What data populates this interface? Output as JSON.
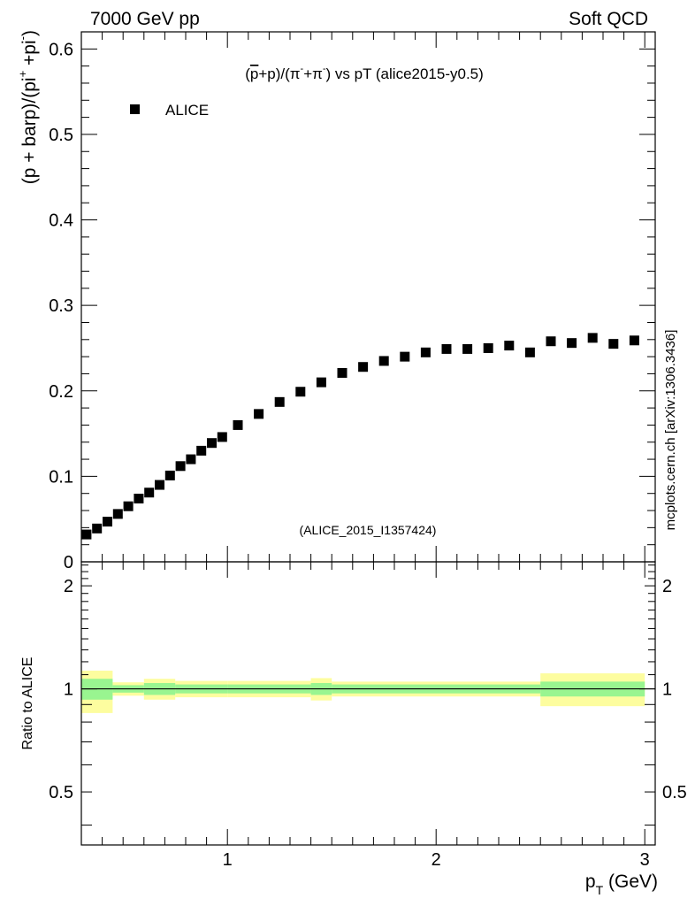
{
  "header": {
    "left": "7000 GeV pp",
    "right": "Soft QCD"
  },
  "watermark": "(ALICE_2015_I1357424)",
  "side_label": "mcplots.cern.ch [arXiv:1306.3436]",
  "colors": {
    "marker": "#000000",
    "band_inner": "#99f590",
    "band_outer": "#fdfd9f",
    "watermark": "#999999"
  },
  "chart_data": [
    {
      "type": "scatter",
      "title_parts": {
        "p1": "(",
        "pbar": "p",
        "p2": "+p)/(π",
        "sup1": "-",
        "p3": "+π",
        "sup2": "-",
        "p4": ") vs pT (alice2015-y0.5)"
      },
      "ylabel_parts": {
        "a": "(p + barp)/(pi",
        "sup1": "+",
        "b": " +pi",
        "sup2": "-",
        "c": ")"
      },
      "legend": {
        "entries": [
          "ALICE"
        ],
        "placement": "top-left"
      },
      "xlim": [
        0.3,
        3.05
      ],
      "ylim": [
        0,
        0.62
      ],
      "yticks": [
        "0",
        "0.1",
        "0.2",
        "0.3",
        "0.4",
        "0.5",
        "0.6"
      ],
      "series": [
        {
          "name": "ALICE",
          "x": [
            0.325,
            0.375,
            0.425,
            0.475,
            0.525,
            0.575,
            0.625,
            0.675,
            0.725,
            0.775,
            0.825,
            0.875,
            0.925,
            0.975,
            1.05,
            1.15,
            1.25,
            1.35,
            1.45,
            1.55,
            1.65,
            1.75,
            1.85,
            1.95,
            2.05,
            2.15,
            2.25,
            2.35,
            2.45,
            2.55,
            2.65,
            2.75,
            2.85,
            2.95
          ],
          "y": [
            0.032,
            0.039,
            0.047,
            0.056,
            0.065,
            0.074,
            0.081,
            0.09,
            0.101,
            0.112,
            0.12,
            0.13,
            0.139,
            0.146,
            0.16,
            0.173,
            0.187,
            0.199,
            0.21,
            0.221,
            0.228,
            0.235,
            0.24,
            0.245,
            0.249,
            0.249,
            0.25,
            0.253,
            0.245,
            0.258,
            0.256,
            0.262,
            0.255,
            0.259
          ]
        }
      ]
    },
    {
      "type": "area",
      "ylabel": "Ratio to ALICE",
      "xlabel_parts": {
        "p": "p",
        "sub": "T",
        "rest": " (GeV)"
      },
      "xlim": [
        0.3,
        3.05
      ],
      "ylim": [
        0.35,
        2.35
      ],
      "xticks": [
        "1",
        "2",
        "3"
      ],
      "yticks": [
        "0.5",
        "1",
        "2"
      ],
      "bands": {
        "edges": [
          0.3,
          0.45,
          0.6,
          0.75,
          1.0,
          1.4,
          1.5,
          2.5,
          3.0
        ],
        "inner": [
          [
            0.93,
            1.07
          ],
          [
            0.975,
            1.025
          ],
          [
            0.96,
            1.04
          ],
          [
            0.97,
            1.03
          ],
          [
            0.97,
            1.03
          ],
          [
            0.96,
            1.04
          ],
          [
            0.97,
            1.03
          ],
          [
            0.95,
            1.05
          ]
        ],
        "outer": [
          [
            0.85,
            1.13
          ],
          [
            0.955,
            1.045
          ],
          [
            0.93,
            1.07
          ],
          [
            0.945,
            1.055
          ],
          [
            0.945,
            1.055
          ],
          [
            0.925,
            1.075
          ],
          [
            0.95,
            1.05
          ],
          [
            0.89,
            1.11
          ]
        ]
      },
      "reference_line": 1
    }
  ]
}
